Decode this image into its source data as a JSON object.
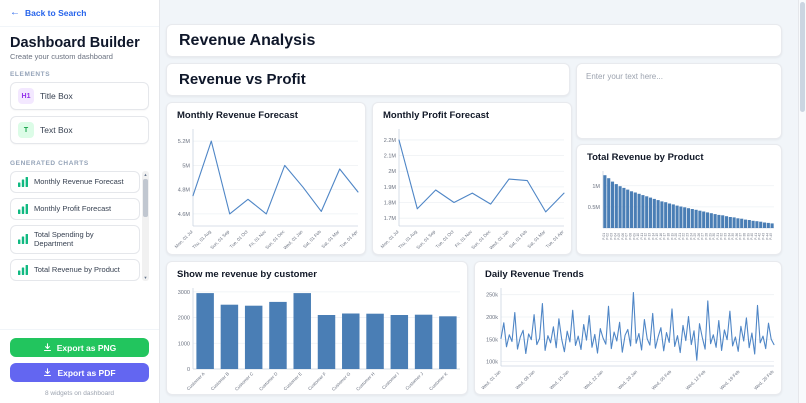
{
  "sidebar": {
    "back_label": "Back to Search",
    "title": "Dashboard Builder",
    "subtitle": "Create your custom dashboard",
    "sections": {
      "elements": "ELEMENTS",
      "generated": "GENERATED CHARTS"
    },
    "elements": [
      {
        "icon_text": "H1",
        "label": "Title Box"
      },
      {
        "icon_text": "T",
        "label": "Text Box"
      }
    ],
    "charts": [
      {
        "label": "Monthly Revenue Forecast"
      },
      {
        "label": "Monthly Profit Forecast"
      },
      {
        "label": "Total Spending by Department"
      },
      {
        "label": "Total Revenue by Product"
      }
    ],
    "export_png_label": "Export as PNG",
    "export_pdf_label": "Export as PDF",
    "widget_count": "8 widgets on dashboard",
    "colors": {
      "accent": "#2563eb",
      "export_png": "#22c55e",
      "export_pdf": "#6366f1",
      "title_icon": "#9333ea",
      "text_icon": "#16a34a",
      "chart_icon": "#10b981"
    }
  },
  "canvas": {
    "title_widgets": [
      "Revenue Analysis",
      "Revenue vs Profit"
    ],
    "text_widget_placeholder": "Enter your text here..."
  },
  "chart_data": [
    {
      "type": "line",
      "title": "Monthly Revenue Forecast",
      "color": "#4f86c6",
      "ylim": [
        4.5,
        5.3
      ],
      "yticks": [
        4.6,
        4.8,
        5.0,
        5.2
      ],
      "ytick_labels": [
        "4.6M",
        "4.8M",
        "5M",
        "5.2M"
      ],
      "categories": [
        "Mon, 01 Jul",
        "Thu, 01 Aug",
        "Sun, 01 Sep",
        "Tue, 01 Oct",
        "Fri, 01 Nov",
        "Sun, 01 Dec",
        "Wed, 01 Jan",
        "Sat, 01 Feb",
        "Sat, 01 Mar",
        "Tue, 01 Apr"
      ],
      "values": [
        4.75,
        5.2,
        4.6,
        4.72,
        4.6,
        5.0,
        4.82,
        4.62,
        4.97,
        4.78
      ]
    },
    {
      "type": "line",
      "title": "Monthly Profit Forecast",
      "color": "#4f86c6",
      "ylim": [
        1.65,
        2.27
      ],
      "yticks": [
        1.7,
        1.8,
        1.9,
        2.0,
        2.1,
        2.2
      ],
      "ytick_labels": [
        "1.7M",
        "1.8M",
        "1.9M",
        "2M",
        "2.1M",
        "2.2M"
      ],
      "categories": [
        "Mon, 01 Jul",
        "Thu, 01 Aug",
        "Sun, 01 Sep",
        "Tue, 01 Oct",
        "Fri, 01 Nov",
        "Sun, 01 Dec",
        "Wed, 01 Jan",
        "Sat, 01 Feb",
        "Sat, 01 Mar",
        "Tue, 01 Apr"
      ],
      "values": [
        2.2,
        1.76,
        1.88,
        1.8,
        1.86,
        1.79,
        1.95,
        1.94,
        1.74,
        1.86
      ]
    },
    {
      "type": "bar",
      "title": "Total Revenue by Product",
      "color": "#4a7eb5",
      "ylim": [
        0,
        1.35
      ],
      "yticks": [
        0.5,
        1.0
      ],
      "ytick_labels": [
        "0.5M",
        "1M"
      ],
      "label_rotate": -90,
      "categories": [
        "P-01",
        "P-02",
        "P-03",
        "P-04",
        "P-05",
        "P-06",
        "P-07",
        "P-08",
        "P-09",
        "P-10",
        "P-11",
        "P-12",
        "P-13",
        "P-14",
        "P-15",
        "P-16",
        "P-17",
        "P-18",
        "P-19",
        "P-20",
        "P-21",
        "P-22",
        "P-23",
        "P-24",
        "P-25",
        "P-26",
        "P-27",
        "P-28",
        "P-29",
        "P-30",
        "P-31",
        "P-32",
        "P-33",
        "P-34",
        "P-35",
        "P-36",
        "P-37",
        "P-38",
        "P-39",
        "P-40",
        "P-41",
        "P-42",
        "P-43",
        "P-44",
        "P-45"
      ],
      "values": [
        1.25,
        1.18,
        1.1,
        1.04,
        0.99,
        0.95,
        0.91,
        0.87,
        0.84,
        0.81,
        0.78,
        0.75,
        0.72,
        0.69,
        0.66,
        0.63,
        0.61,
        0.58,
        0.56,
        0.53,
        0.51,
        0.49,
        0.47,
        0.45,
        0.43,
        0.41,
        0.39,
        0.37,
        0.35,
        0.33,
        0.31,
        0.3,
        0.28,
        0.26,
        0.25,
        0.23,
        0.22,
        0.2,
        0.19,
        0.17,
        0.16,
        0.15,
        0.13,
        0.12,
        0.11
      ]
    },
    {
      "type": "bar",
      "title": "Show me revenue by customer",
      "color": "#4a7eb5",
      "ylim": [
        0,
        3150
      ],
      "yticks": [
        0,
        1000,
        2000,
        3000
      ],
      "ytick_labels": [
        "0",
        "1000",
        "2000",
        "3000"
      ],
      "label_rotate": -45,
      "categories": [
        "Customer A",
        "Customer B",
        "Customer C",
        "Customer D",
        "Customer E",
        "Customer F",
        "Customer G",
        "Customer H",
        "Customer I",
        "Customer J",
        "Customer K"
      ],
      "values": [
        2950,
        2500,
        2460,
        2610,
        2950,
        2100,
        2160,
        2150,
        2100,
        2110,
        2050
      ]
    },
    {
      "type": "line",
      "title": "Daily Revenue Trends",
      "color": "#4f86c6",
      "ylim": [
        90,
        265
      ],
      "yticks": [
        100,
        150,
        200,
        250
      ],
      "ytick_labels": [
        "100k",
        "150k",
        "200k",
        "250k"
      ],
      "categories": [
        "Wed, 01 Jan",
        "Wed, 08 Jan",
        "Wed, 15 Jan",
        "Wed, 22 Jan",
        "Wed, 29 Jan",
        "Wed, 05 Feb",
        "Wed, 12 Feb",
        "Wed, 19 Feb",
        "Wed, 26 Feb"
      ],
      "values": [
        152,
        187,
        133,
        160,
        145,
        210,
        128,
        155,
        170,
        118,
        162,
        149,
        205,
        138,
        152,
        230,
        125,
        158,
        142,
        178,
        131,
        196,
        150,
        122,
        168,
        144,
        215,
        136,
        157,
        127,
        183,
        148,
        203,
        132,
        161,
        119,
        174,
        153,
        139,
        224,
        129,
        166,
        146,
        188,
        121,
        159,
        172,
        135,
        255,
        141,
        163,
        126,
        194,
        151,
        137,
        208,
        130,
        156,
        176,
        124,
        165,
        143,
        218,
        134,
        158,
        120,
        181,
        147,
        201,
        138,
        169,
        103,
        185,
        154,
        128,
        236,
        140,
        160,
        132,
        192,
        125,
        171,
        149,
        213,
        135,
        155,
        123,
        179,
        146,
        198,
        131,
        164,
        117,
        226,
        142,
        157,
        129,
        186,
        150,
        138
      ]
    }
  ]
}
